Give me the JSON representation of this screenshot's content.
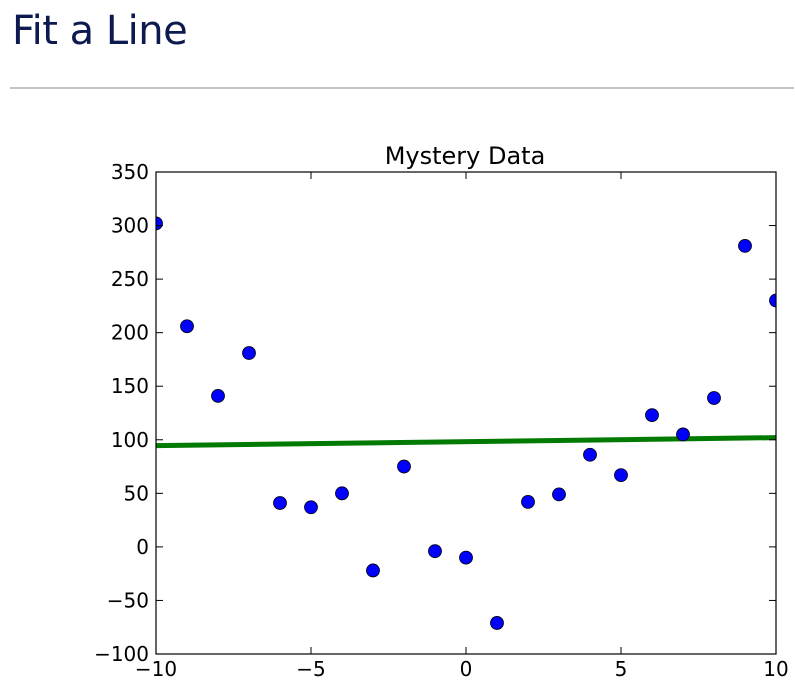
{
  "page": {
    "title": "Fit a Line"
  },
  "chart_data": {
    "type": "scatter",
    "title": "Mystery Data",
    "xlabel": "",
    "ylabel": "",
    "xlim": [
      -10,
      10
    ],
    "ylim": [
      -100,
      350
    ],
    "grid": false,
    "x_ticks": [
      -10,
      -5,
      0,
      5,
      10
    ],
    "x_tick_labels": [
      "−10",
      "−5",
      "0",
      "5",
      "10"
    ],
    "y_ticks": [
      -100,
      -50,
      0,
      50,
      100,
      150,
      200,
      250,
      300,
      350
    ],
    "y_tick_labels": [
      "−100",
      "−50",
      "0",
      "50",
      "100",
      "150",
      "200",
      "250",
      "300",
      "350"
    ],
    "series": [
      {
        "type": "scatter",
        "color": "#0000ff",
        "x": [
          -10,
          -9,
          -8,
          -7,
          -6,
          -5,
          -4,
          -3,
          -2,
          -1,
          0,
          1,
          2,
          3,
          4,
          5,
          6,
          7,
          8,
          9,
          10
        ],
        "y": [
          302,
          206,
          141,
          181,
          41,
          37,
          50,
          -22,
          75,
          -4,
          -10,
          -71,
          42,
          49,
          86,
          67,
          123,
          105,
          139,
          281,
          230
        ]
      },
      {
        "type": "line",
        "color": "#007a00",
        "x": [
          -10,
          10
        ],
        "y": [
          94.5,
          102
        ]
      }
    ]
  }
}
